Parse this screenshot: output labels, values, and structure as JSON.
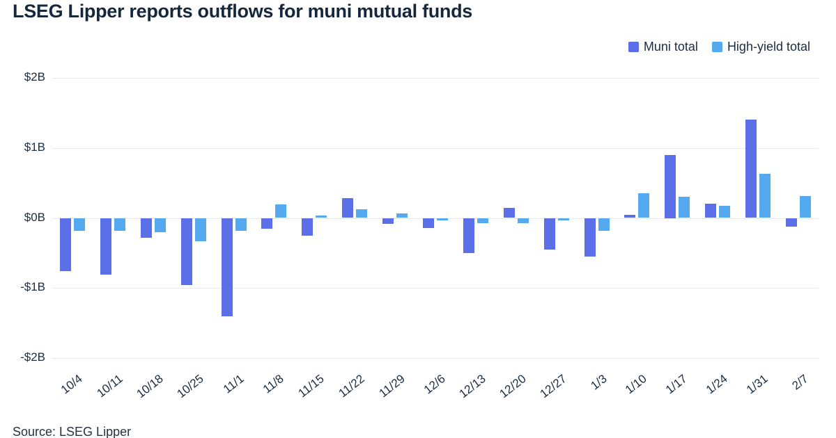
{
  "title": "LSEG Lipper reports outflows for muni mutual funds",
  "source": "Source: LSEG Lipper",
  "chart_data": {
    "type": "bar",
    "title": "LSEG Lipper reports outflows for muni mutual funds",
    "categories": [
      "10/4",
      "10/11",
      "10/18",
      "10/25",
      "11/1",
      "11/8",
      "11/15",
      "11/22",
      "11/29",
      "12/6",
      "12/13",
      "12/20",
      "12/27",
      "1/3",
      "1/10",
      "1/17",
      "1/24",
      "1/31",
      "2/7"
    ],
    "series": [
      {
        "name": "Muni total",
        "color": "#5b70e8",
        "values": [
          -0.75,
          -0.8,
          -0.28,
          -0.95,
          -1.4,
          -0.15,
          -0.25,
          0.28,
          -0.08,
          -0.14,
          -0.5,
          0.14,
          -0.45,
          -0.55,
          0.04,
          0.9,
          0.2,
          1.4,
          -0.12
        ]
      },
      {
        "name": "High-yield total",
        "color": "#55a9ef",
        "values": [
          -0.18,
          -0.18,
          -0.2,
          -0.33,
          -0.18,
          0.19,
          0.03,
          0.12,
          0.06,
          -0.03,
          -0.07,
          -0.07,
          -0.03,
          -0.18,
          0.35,
          0.3,
          0.17,
          0.63,
          0.31
        ]
      }
    ],
    "xlabel": "",
    "ylabel": "",
    "ylim": [
      -2,
      2
    ],
    "yticks": [
      "$2B",
      "$1B",
      "$0B",
      "-$1B",
      "-$2B"
    ],
    "ytick_values": [
      2,
      1,
      0,
      -1,
      -2
    ],
    "grid": true,
    "legend_position": "top-right"
  }
}
